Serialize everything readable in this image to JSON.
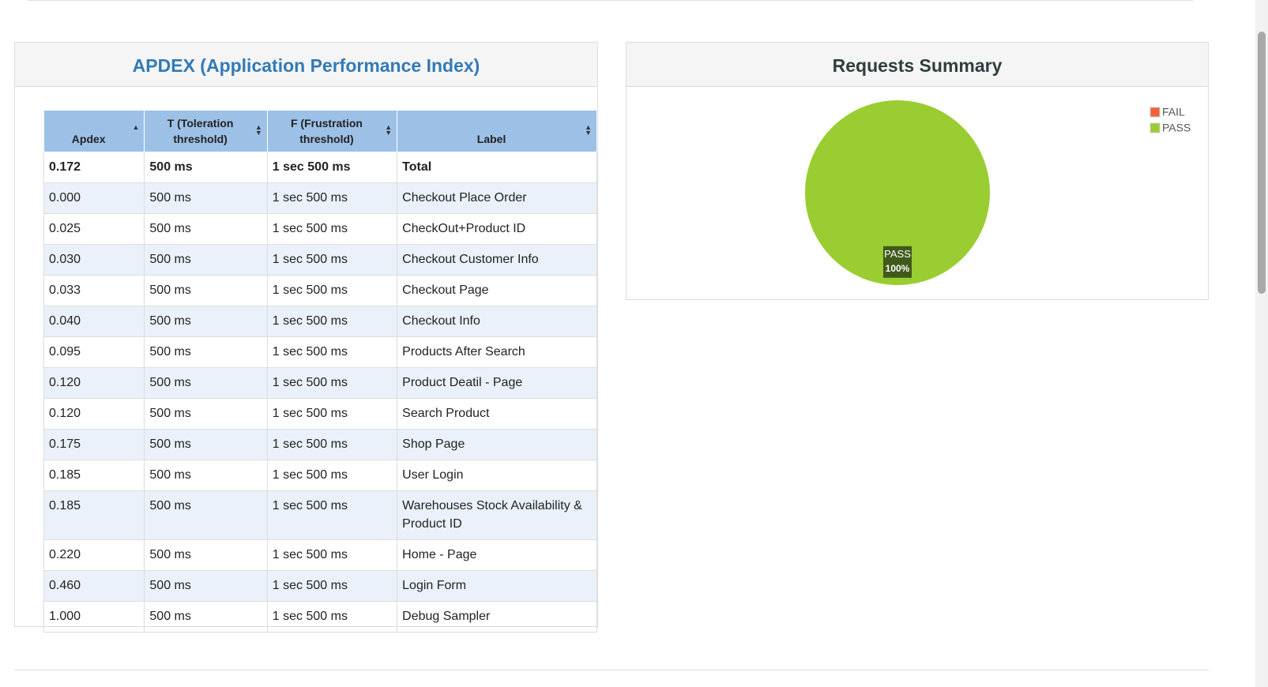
{
  "apdex": {
    "title": "APDEX (Application Performance Index)",
    "columns": [
      "Apdex",
      "T (Toleration threshold)",
      "F (Frustration threshold)",
      "Label"
    ],
    "total": [
      "0.172",
      "500 ms",
      "1 sec 500 ms",
      "Total"
    ],
    "rows": [
      [
        "0.000",
        "500 ms",
        "1 sec 500 ms",
        "Checkout Place Order"
      ],
      [
        "0.025",
        "500 ms",
        "1 sec 500 ms",
        "CheckOut+Product ID"
      ],
      [
        "0.030",
        "500 ms",
        "1 sec 500 ms",
        "Checkout Customer Info"
      ],
      [
        "0.033",
        "500 ms",
        "1 sec 500 ms",
        "Checkout Page"
      ],
      [
        "0.040",
        "500 ms",
        "1 sec 500 ms",
        "Checkout Info"
      ],
      [
        "0.095",
        "500 ms",
        "1 sec 500 ms",
        "Products After Search"
      ],
      [
        "0.120",
        "500 ms",
        "1 sec 500 ms",
        "Product Deatil - Page"
      ],
      [
        "0.120",
        "500 ms",
        "1 sec 500 ms",
        "Search Product"
      ],
      [
        "0.175",
        "500 ms",
        "1 sec 500 ms",
        "Shop Page"
      ],
      [
        "0.185",
        "500 ms",
        "1 sec 500 ms",
        "User Login"
      ],
      [
        "0.185",
        "500 ms",
        "1 sec 500 ms",
        "Warehouses Stock Availability & Product ID"
      ],
      [
        "0.220",
        "500 ms",
        "1 sec 500 ms",
        "Home - Page"
      ],
      [
        "0.460",
        "500 ms",
        "1 sec 500 ms",
        "Login Form"
      ],
      [
        "1.000",
        "500 ms",
        "1 sec 500 ms",
        "Debug Sampler"
      ]
    ]
  },
  "chart_data": {
    "type": "pie",
    "title": "Requests Summary",
    "categories": [
      "FAIL",
      "PASS"
    ],
    "values": [
      0,
      100
    ],
    "value_labels": [
      null,
      "100%"
    ],
    "colors": [
      "#f2603a",
      "#9acd32"
    ],
    "legend": "top-right"
  }
}
